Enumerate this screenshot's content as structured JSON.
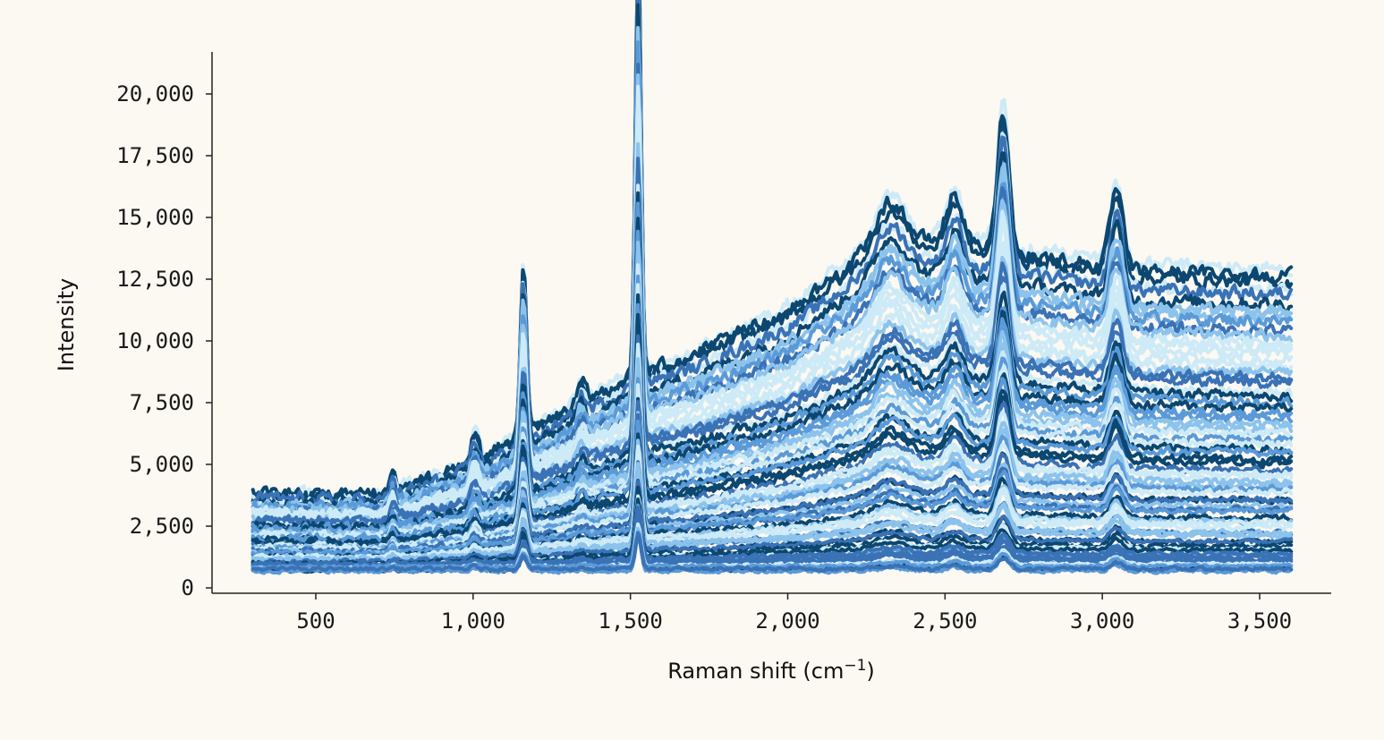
{
  "chart_data": {
    "type": "line",
    "xlabel": "Raman shift (cm",
    "xlabel_sup": "−1",
    "xlabel_close": ")",
    "ylabel": "Intensity",
    "xlim": [
      180,
      3410
    ],
    "ylim": [
      -250,
      21900
    ],
    "x_range": [
      300,
      3600
    ],
    "xticks": [
      500,
      1000,
      1500,
      2000,
      2500,
      3000,
      3500
    ],
    "xtick_labels": [
      "500",
      "1,000",
      "1,500",
      "2,000",
      "2,500",
      "3,000",
      "3,500"
    ],
    "yticks": [
      0,
      2500,
      5000,
      7500,
      10000,
      12500,
      15000,
      17500,
      20000
    ],
    "ytick_labels": [
      "0",
      "2,500",
      "5,000",
      "7,500",
      "10,000",
      "12,500",
      "15,000",
      "17,500",
      "20,000"
    ],
    "colors": [
      "#0b4770",
      "#3a72b6",
      "#5a9ad8",
      "#8cc3ec",
      "#cdeaf7"
    ],
    "peaks": [
      {
        "center": 745,
        "height": 800,
        "width": 8
      },
      {
        "center": 1005,
        "height": 1200,
        "width": 12
      },
      {
        "center": 1160,
        "height": 7000,
        "width": 10
      },
      {
        "center": 1345,
        "height": 800,
        "width": 12
      },
      {
        "center": 1525,
        "height": 17500,
        "width": 9
      },
      {
        "center": 2330,
        "height": 1600,
        "width": 45
      },
      {
        "center": 2530,
        "height": 2000,
        "width": 25
      },
      {
        "center": 2685,
        "height": 5800,
        "width": 18
      },
      {
        "center": 3045,
        "height": 3200,
        "width": 20
      }
    ],
    "envelope_top": [
      {
        "x": 300,
        "y": 3700
      },
      {
        "x": 700,
        "y": 3600
      },
      {
        "x": 1000,
        "y": 5000
      },
      {
        "x": 1300,
        "y": 7200
      },
      {
        "x": 1500,
        "y": 8600
      },
      {
        "x": 1700,
        "y": 9500
      },
      {
        "x": 2000,
        "y": 11300
      },
      {
        "x": 2300,
        "y": 14200
      },
      {
        "x": 2500,
        "y": 14200
      },
      {
        "x": 2800,
        "y": 13600
      },
      {
        "x": 3100,
        "y": 13000
      },
      {
        "x": 3600,
        "y": 12800
      }
    ],
    "series_count": 70,
    "base_min": 650
  }
}
